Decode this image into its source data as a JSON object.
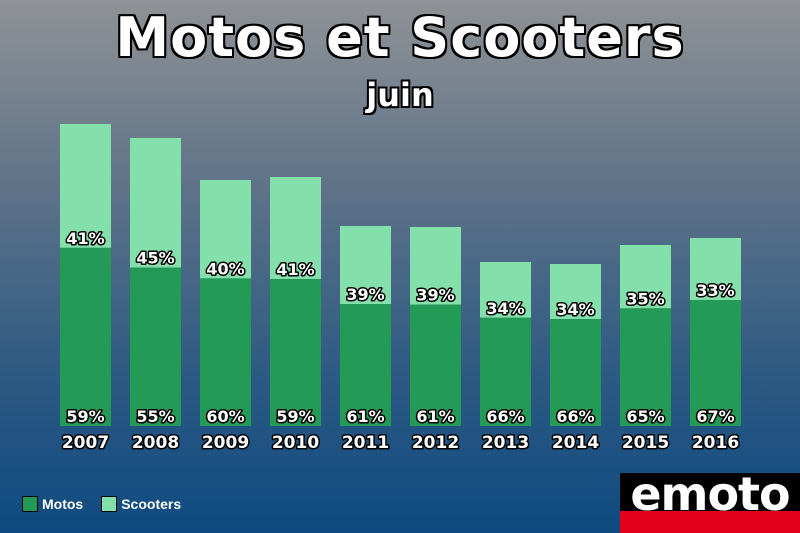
{
  "chart_data": {
    "type": "bar",
    "stacked": true,
    "title": "Motos et Scooters",
    "subtitle": "juin",
    "categories": [
      "2007",
      "2008",
      "2009",
      "2010",
      "2011",
      "2012",
      "2013",
      "2014",
      "2015",
      "2016"
    ],
    "series": [
      {
        "name": "Motos",
        "color": "#239a55",
        "values": [
          59,
          55,
          60,
          59,
          61,
          61,
          66,
          66,
          65,
          67
        ],
        "labels": [
          "59%",
          "55%",
          "60%",
          "59%",
          "61%",
          "61%",
          "66%",
          "66%",
          "65%",
          "67%"
        ]
      },
      {
        "name": "Scooters",
        "color": "#84e0aa",
        "values": [
          41,
          45,
          40,
          41,
          39,
          39,
          34,
          34,
          35,
          33
        ],
        "labels": [
          "41%",
          "45%",
          "40%",
          "41%",
          "39%",
          "39%",
          "34%",
          "34%",
          "35%",
          "33%"
        ]
      }
    ],
    "relative_totals": [
      302,
      288,
      246,
      249,
      200,
      199,
      164,
      162,
      181,
      188
    ],
    "legend": "bottom-left",
    "grid": false
  },
  "logo_text": "emoto"
}
